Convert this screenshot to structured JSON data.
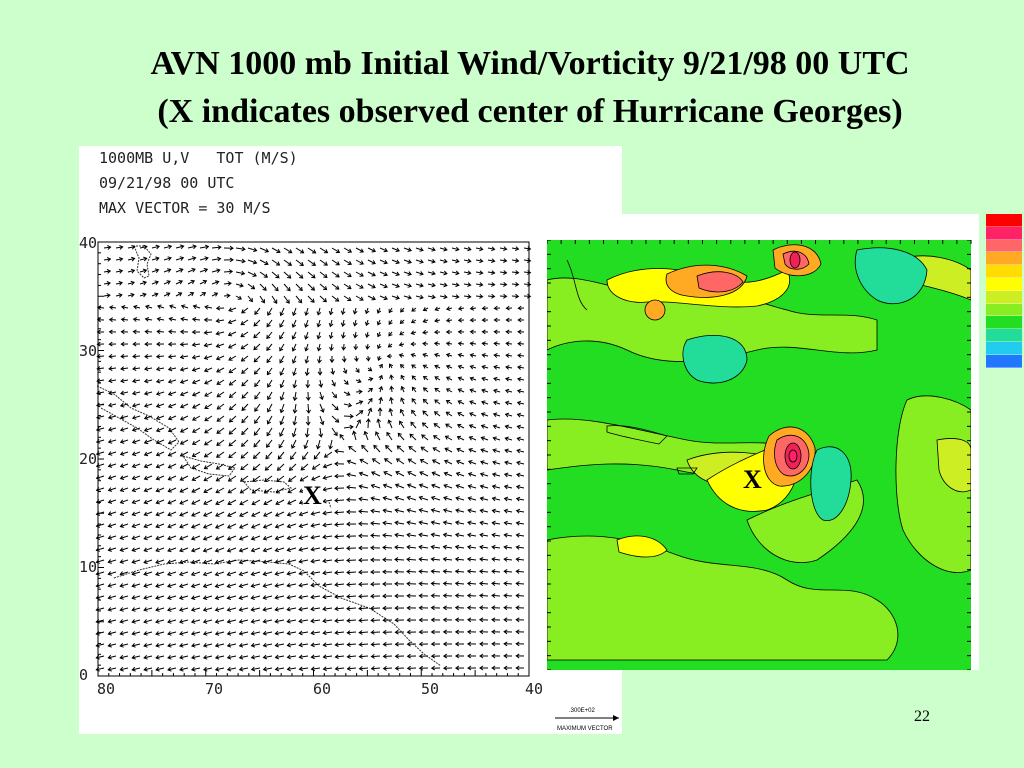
{
  "slide": {
    "title_line1": "AVN 1000 mb Initial Wind/Vorticity 9/21/98  00 UTC",
    "title_line2": "(X indicates observed center of Hurricane Georges)",
    "page_number": "22"
  },
  "wind_panel": {
    "header_line1": "1000MB U,V   TOT (M/S)",
    "header_line2": "09/21/98 00 UTC",
    "header_line3": "MAX VECTOR = 30 M/S",
    "y_ticks": [
      "40",
      "30",
      "20",
      "10",
      "0"
    ],
    "x_ticks": [
      "80",
      "70",
      "60",
      "50",
      "40"
    ],
    "center_marker": "X",
    "reference_vector_label": ".300E+02",
    "reference_vector_caption": "MAXIMUM VECTOR"
  },
  "vorticity_panel": {
    "center_marker": "X",
    "colors": {
      "background_field": "#22dd22",
      "light_green": "#88ee22",
      "yellow_green": "#ccee22",
      "yellow": "#ffff00",
      "orange": "#ffaa22",
      "salmon": "#ff6666",
      "red": "#ee2255",
      "cyan_green": "#22dd99",
      "land_outline": "#000000"
    }
  },
  "color_key": {
    "swatches": [
      "#ff0000",
      "#ff2266",
      "#ff6666",
      "#ffaa22",
      "#ffdd00",
      "#ffff00",
      "#ccee22",
      "#88ee22",
      "#22dd22",
      "#22dd99",
      "#22ccee",
      "#2277ff",
      "#2222ff",
      "#8822ff"
    ]
  }
}
